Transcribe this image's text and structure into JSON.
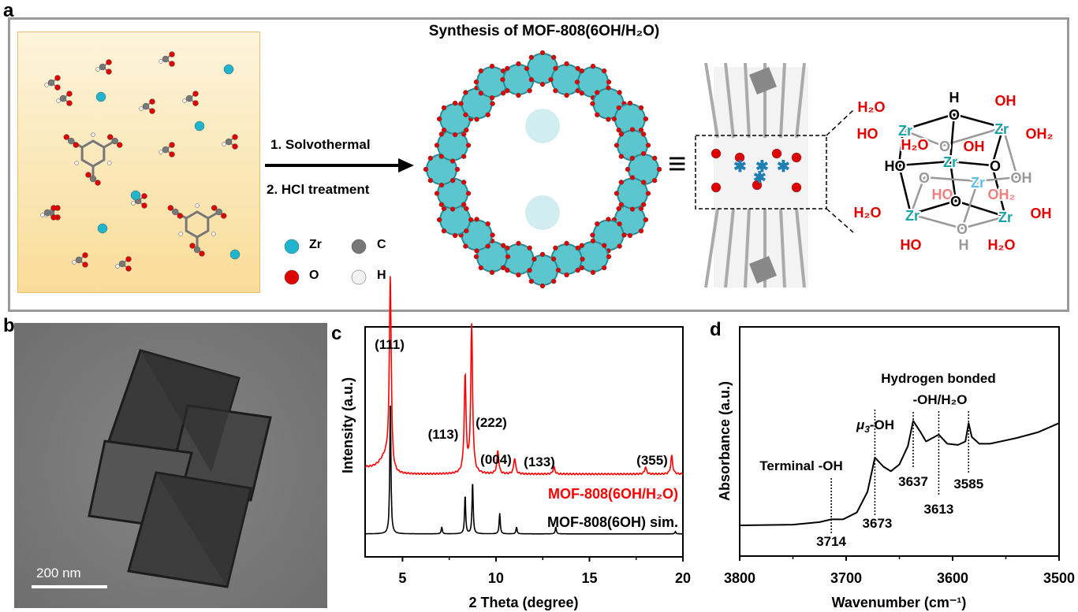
{
  "panel_labels": {
    "a": "a",
    "b": "b",
    "c": "c",
    "d": "d"
  },
  "panel_a": {
    "title": "Synthesis of MOF-808(6OH/H₂O)",
    "step1": "1. Solvothermal",
    "step2": "2. HCl treatment",
    "equiv_symbol": "≡",
    "legend": [
      {
        "label": "Zr",
        "color": "#1fb5cf"
      },
      {
        "label": "C",
        "color": "#777777"
      },
      {
        "label": "O",
        "color": "#e00000"
      },
      {
        "label": "H",
        "color": "#f2f2f2"
      }
    ],
    "cluster": {
      "zr_label": "Zr",
      "h2o": "H₂O",
      "ho": "HO",
      "oh": "OH",
      "oh2": "OH₂",
      "o": "O",
      "h": "H"
    },
    "colors": {
      "zr": "#1aa3a8",
      "ligand": "#e00000",
      "back": "#999999",
      "zr_back": "#5bc0f0",
      "ligand_back": "#f08080"
    }
  },
  "panel_b": {
    "scale_bar": "200 nm"
  },
  "chart_data": [
    {
      "type": "line",
      "panel": "c",
      "xlabel": "2 Theta (degree)",
      "ylabel": "Intensity (a.u.)",
      "xlim": [
        3,
        20
      ],
      "xticks": [
        5,
        10,
        15,
        20
      ],
      "series": [
        {
          "name": "MOF-808(6OH/H₂O)",
          "color": "#ff0000",
          "baseline": 0.36,
          "peaks": [
            [
              4.35,
              0.84
            ],
            [
              8.35,
              0.42
            ],
            [
              8.7,
              0.64
            ],
            [
              10.1,
              0.1
            ],
            [
              11.0,
              0.07
            ],
            [
              13.1,
              0.03
            ],
            [
              18.0,
              0.03
            ],
            [
              19.4,
              0.08
            ]
          ]
        },
        {
          "name": "MOF-808(6OH) sim.",
          "color": "#000000",
          "baseline": 0.1,
          "peaks": [
            [
              4.35,
              0.6
            ],
            [
              7.1,
              0.03
            ],
            [
              8.35,
              0.17
            ],
            [
              8.75,
              0.23
            ],
            [
              10.2,
              0.09
            ],
            [
              11.1,
              0.03
            ],
            [
              13.2,
              0.03
            ],
            [
              19.6,
              0.01
            ]
          ]
        }
      ],
      "annotations": [
        "(111)",
        "(113)",
        "(222)",
        "(004)",
        "(133)",
        "(355)"
      ]
    },
    {
      "type": "line",
      "panel": "d",
      "xlabel": "Wavenumber (cm⁻¹)",
      "ylabel": "Absorbance (a.u.)",
      "xlim": [
        3800,
        3500
      ],
      "xticks": [
        3800,
        3700,
        3600,
        3500
      ],
      "series": [
        {
          "name": "MOF-808(6OH/H₂O)",
          "color": "#000000",
          "x": [
            3800,
            3750,
            3725,
            3714,
            3703,
            3690,
            3680,
            3673,
            3665,
            3658,
            3650,
            3642,
            3637,
            3630,
            3625,
            3613,
            3605,
            3595,
            3588,
            3585,
            3582,
            3575,
            3565,
            3540,
            3520,
            3500
          ],
          "y": [
            0.134,
            0.137,
            0.148,
            0.16,
            0.16,
            0.19,
            0.28,
            0.43,
            0.39,
            0.37,
            0.4,
            0.48,
            0.59,
            0.54,
            0.5,
            0.53,
            0.49,
            0.485,
            0.5,
            0.58,
            0.52,
            0.49,
            0.49,
            0.515,
            0.54,
            0.58
          ]
        }
      ],
      "peak_labels": [
        "3714",
        "3673",
        "3637",
        "3613",
        "3585"
      ],
      "annotations": {
        "terminal": "Terminal -OH",
        "mu3": "-OH",
        "mu3_sym": "μ",
        "mu3_sub": "3",
        "hbond1": "Hydrogen bonded",
        "hbond2": "-OH/H₂O"
      }
    }
  ]
}
